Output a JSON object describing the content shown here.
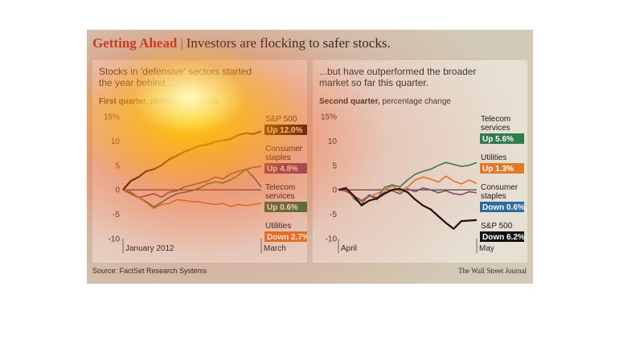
{
  "header": {
    "title_main": "Getting Ahead",
    "title_sep": "|",
    "title_rest": "Investors are flocking to safer stocks."
  },
  "left_panel": {
    "headline": "Stocks in 'defensive' sectors started the year behind...",
    "subtitle_bold": "First quarter,",
    "subtitle_rest": " percentage change"
  },
  "right_panel": {
    "headline": "...but have outperformed the broader market so far this quarter.",
    "subtitle_bold": "Second quarter,",
    "subtitle_rest": " percentage change"
  },
  "footer": {
    "source": "Source: FactSet Research Systems",
    "credit": "The Wall Street Journal"
  },
  "colors": {
    "sp500": "#111111",
    "consumer_staples": "#7a4d7a",
    "telecom": "#2e7d4f",
    "utilities": "#e07b2c",
    "background": "#d2c9b6",
    "panel": "#e6e0d3"
  },
  "chart_data": [
    {
      "type": "line",
      "yticks": [
        "15%",
        "10",
        "5",
        "0",
        "-5",
        "-10"
      ],
      "ylim": [
        -10,
        15
      ],
      "xlabels": [
        "January 2012",
        "March"
      ],
      "series": [
        {
          "name": "S&P 500",
          "key": "sp500",
          "label_lines": [
            "S&P 500"
          ],
          "badge": "Up 12.0%",
          "badge_color": "#111111",
          "values": [
            0,
            1.8,
            2.6,
            3.8,
            4.2,
            5.0,
            6.2,
            7.0,
            7.8,
            8.4,
            9.0,
            9.3,
            9.8,
            10.1,
            10.4,
            11.2,
            11.6,
            11.4,
            12.0
          ]
        },
        {
          "name": "Consumer staples",
          "key": "consumer_staples",
          "label_lines": [
            "Consumer",
            "staples"
          ],
          "badge": "Up 4.8%",
          "badge_color": "#7a4d7a",
          "values": [
            0,
            -0.8,
            -1.6,
            -1.2,
            -0.8,
            -1.5,
            -0.5,
            -0.2,
            0.6,
            1.0,
            1.4,
            1.8,
            2.6,
            2.2,
            3.2,
            3.8,
            4.2,
            4.6,
            4.8
          ]
        },
        {
          "name": "Telecom services",
          "key": "telecom",
          "label_lines": [
            "Telecom",
            "services"
          ],
          "badge": "Up 0.6%",
          "badge_color": "#2e7d4f",
          "values": [
            0,
            -0.6,
            -1.5,
            -2.4,
            -3.5,
            -2.6,
            -1.6,
            -0.8,
            -0.5,
            -0.2,
            0.4,
            1.2,
            1.6,
            1.4,
            2.0,
            3.0,
            4.2,
            2.6,
            0.6
          ]
        },
        {
          "name": "Utilities",
          "key": "utilities",
          "label_lines": [
            "Utilities"
          ],
          "badge": "Down 2.7%",
          "badge_color": "#e07b2c",
          "values": [
            0,
            -0.4,
            -1.5,
            -2.6,
            -3.8,
            -3.0,
            -2.8,
            -2.0,
            -2.2,
            -2.4,
            -2.5,
            -2.8,
            -3.0,
            -2.8,
            -3.4,
            -3.0,
            -3.2,
            -3.0,
            -2.7
          ]
        }
      ]
    },
    {
      "type": "line",
      "yticks": [
        "15%",
        "10",
        "5",
        "0",
        "-5",
        "-10"
      ],
      "ylim": [
        -10,
        15
      ],
      "xlabels": [
        "April",
        "May"
      ],
      "series": [
        {
          "name": "Telecom services",
          "key": "telecom",
          "label_lines": [
            "Telecom",
            "services"
          ],
          "badge": "Up 5.6%",
          "badge_color": "#2e7d4f",
          "values": [
            0,
            0.5,
            -1.8,
            -3.0,
            -1.0,
            -2.0,
            0.5,
            1.0,
            0.6,
            2.0,
            3.2,
            3.8,
            4.2,
            5.0,
            5.6,
            5.2,
            4.8,
            5.0,
            5.6
          ]
        },
        {
          "name": "Utilities",
          "key": "utilities",
          "label_lines": [
            "Utilities"
          ],
          "badge": "Up 1.3%",
          "badge_color": "#e07b2c",
          "values": [
            0,
            0.2,
            -1.5,
            -2.4,
            -1.4,
            -0.8,
            0.0,
            0.8,
            -0.3,
            0.6,
            2.0,
            2.6,
            2.2,
            1.6,
            2.8,
            1.8,
            1.2,
            2.0,
            1.3
          ]
        },
        {
          "name": "Consumer staples",
          "key": "consumer_staples",
          "label_lines": [
            "Consumer",
            "staples"
          ],
          "badge": "Down 0.6%",
          "badge_color": "#2e6a9e",
          "values": [
            0,
            -0.3,
            -1.2,
            -2.2,
            -1.2,
            -1.6,
            -0.5,
            -0.2,
            -0.8,
            0.2,
            -0.4,
            0.4,
            0.0,
            -0.6,
            -0.2,
            -0.8,
            -1.0,
            -0.4,
            -0.6
          ]
        },
        {
          "name": "S&P 500",
          "key": "sp500",
          "label_lines": [
            "S&P 500"
          ],
          "badge": "Down 6.2%",
          "badge_color": "#111111",
          "values": [
            0,
            0.3,
            -1.2,
            -3.2,
            -2.2,
            -1.8,
            -0.8,
            0.0,
            0.2,
            -0.5,
            -2.0,
            -3.2,
            -4.0,
            -5.4,
            -6.8,
            -8.0,
            -6.4,
            -6.3,
            -6.2
          ]
        }
      ]
    }
  ]
}
